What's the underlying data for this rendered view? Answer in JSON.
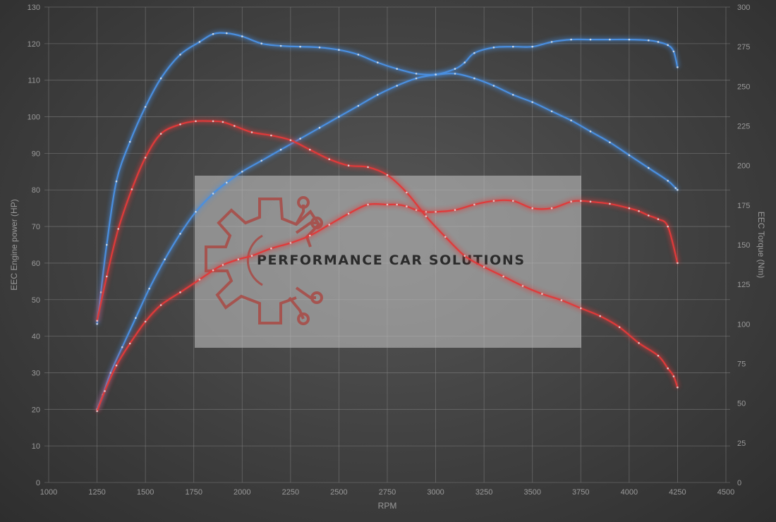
{
  "chart_data": {
    "type": "line",
    "xlabel": "RPM",
    "ylabel_left": "EEC Engine power (HP)",
    "ylabel_right": "EEC Torque (Nm)",
    "xlim": [
      1000,
      4500
    ],
    "xticks": [
      1000,
      1250,
      1500,
      1750,
      2000,
      2250,
      2500,
      2750,
      3000,
      3250,
      3500,
      3750,
      4000,
      4250,
      4500
    ],
    "ylim_left": [
      0,
      130
    ],
    "yticks_left": [
      0,
      10,
      20,
      30,
      40,
      50,
      60,
      70,
      80,
      90,
      100,
      110,
      120,
      130
    ],
    "ylim_right": [
      0,
      300
    ],
    "yticks_right": [
      0,
      25,
      50,
      75,
      100,
      125,
      150,
      175,
      200,
      225,
      250,
      275,
      300
    ],
    "grid": true,
    "colors": {
      "tuned": "#4a8fe0",
      "stock": "#e03a3a",
      "background": "#404040",
      "grid": "#8a8a8a"
    },
    "series": [
      {
        "axis": "left",
        "color": "#4a8fe0",
        "x": [
          1250,
          1280,
          1320,
          1380,
          1450,
          1520,
          1600,
          1680,
          1760,
          1850,
          1920,
          2000,
          2100,
          2200,
          2300,
          2400,
          2500,
          2600,
          2700,
          2800,
          2900,
          3000,
          3100,
          3200,
          3300,
          3400,
          3500,
          3600,
          3700,
          3800,
          3900,
          4000,
          4100,
          4200,
          4240,
          4250
        ],
        "y": [
          20,
          24,
          30,
          37,
          45,
          53,
          61,
          68,
          74,
          79,
          82,
          85,
          88,
          91,
          94,
          97,
          100,
          103,
          106,
          108.5,
          110.5,
          111.5,
          111.8,
          110.5,
          108.5,
          106,
          104,
          101.5,
          99,
          96,
          93,
          89.5,
          86,
          82.5,
          80.5,
          80
        ]
      },
      {
        "axis": "right",
        "color": "#4a8fe0",
        "x": [
          1250,
          1270,
          1300,
          1350,
          1420,
          1500,
          1580,
          1680,
          1780,
          1850,
          1920,
          2000,
          2100,
          2200,
          2300,
          2400,
          2500,
          2600,
          2700,
          2800,
          2900,
          3000,
          3100,
          3150,
          3200,
          3300,
          3400,
          3500,
          3600,
          3700,
          3800,
          3900,
          4000,
          4100,
          4150,
          4200,
          4230,
          4250
        ],
        "y": [
          100,
          120,
          150,
          190,
          215,
          237,
          255,
          270,
          278,
          283,
          283.5,
          281.5,
          277,
          275.5,
          275,
          274.5,
          273,
          270,
          265,
          261,
          258,
          257.5,
          261,
          265,
          271,
          274.5,
          275,
          275,
          278,
          279.5,
          279.5,
          279.5,
          279.5,
          279,
          278,
          276,
          272,
          262
        ]
      },
      {
        "axis": "left",
        "color": "#e03a3a",
        "x": [
          1250,
          1290,
          1350,
          1420,
          1500,
          1580,
          1680,
          1780,
          1850,
          1900,
          1980,
          2050,
          2150,
          2250,
          2350,
          2450,
          2550,
          2650,
          2750,
          2800,
          2850,
          2900,
          2950,
          3000,
          3100,
          3200,
          3300,
          3400,
          3500,
          3600,
          3700,
          3750,
          3800,
          3900,
          4000,
          4050,
          4100,
          4150,
          4200,
          4250
        ],
        "y": [
          19.5,
          25,
          32,
          38,
          44,
          48.5,
          52,
          55.5,
          58,
          59.5,
          61,
          62,
          64,
          65.5,
          67.5,
          70.5,
          73.5,
          76,
          76,
          76,
          75.5,
          74.5,
          74,
          74,
          74.5,
          76,
          77,
          77,
          75,
          75,
          76.8,
          77,
          76.8,
          76.2,
          75,
          74.2,
          73,
          72,
          70,
          60
        ]
      },
      {
        "axis": "right",
        "color": "#e03a3a",
        "x": [
          1250,
          1300,
          1360,
          1430,
          1500,
          1580,
          1680,
          1760,
          1850,
          1900,
          1960,
          2050,
          2150,
          2250,
          2350,
          2450,
          2550,
          2650,
          2750,
          2850,
          2950,
          3050,
          3150,
          3250,
          3350,
          3450,
          3550,
          3650,
          3750,
          3850,
          3950,
          4050,
          4150,
          4200,
          4230,
          4250
        ],
        "y": [
          102,
          130,
          160,
          185,
          205,
          220,
          226,
          228,
          228,
          227.5,
          225,
          221,
          219,
          216,
          210,
          204,
          200,
          199,
          194,
          183,
          168,
          155,
          143,
          136,
          130,
          124,
          119,
          115,
          110,
          105,
          98,
          88,
          80,
          72,
          67,
          60
        ]
      }
    ]
  },
  "watermark": {
    "text": "PERFORMANCE CAR SOLUTIONS"
  }
}
